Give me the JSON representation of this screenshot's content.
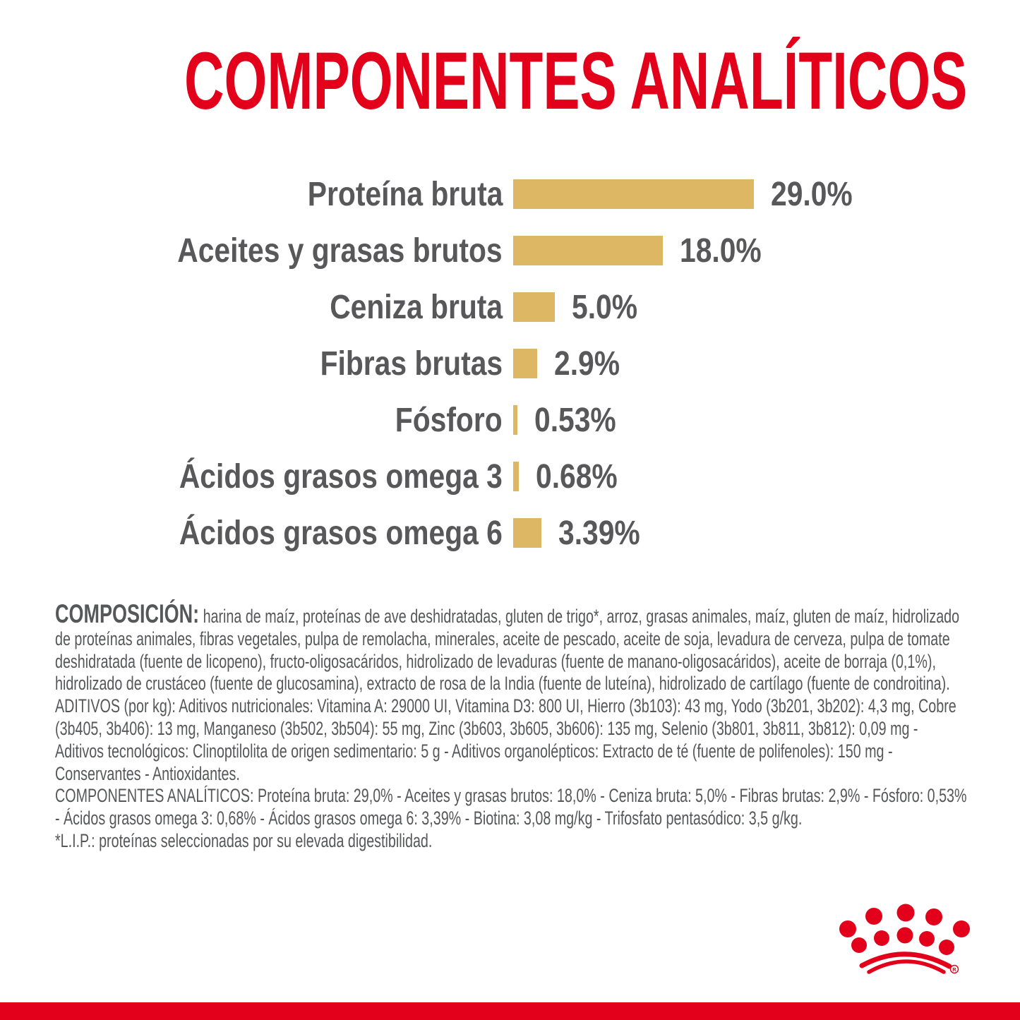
{
  "page": {
    "background": "#FFFFFF",
    "brand_red": "#E2001A",
    "text_gray": "#58585A"
  },
  "title": "COMPONENTES ANALÍTICOS",
  "chart_data": {
    "type": "bar",
    "orientation": "horizontal",
    "unit": "%",
    "categories": [
      "Proteína bruta",
      "Aceites y grasas brutos",
      "Ceniza bruta",
      "Fibras brutas",
      "Fósforo",
      "Ácidos grasos omega 3",
      "Ácidos grasos omega 6"
    ],
    "values": [
      29.0,
      18.0,
      5.0,
      2.9,
      0.53,
      0.68,
      3.39
    ],
    "value_labels": [
      "29.0%",
      "18.0%",
      "5.0%",
      "2.9%",
      "0.53%",
      "0.68%",
      "3.39%"
    ],
    "bar_color": "#DDB763",
    "label_color": "#58585A",
    "xlim": [
      0,
      30
    ],
    "grid": false,
    "legend": "none"
  },
  "legal": {
    "composition_label": "COMPOSICIÓN:",
    "composition_text": "harina de maíz, proteínas de ave deshidratadas, gluten de trigo*, arroz, grasas animales, maíz, gluten de maíz, hidrolizado de proteínas animales, fibras vegetales, pulpa de remolacha, minerales, aceite de pescado, aceite de soja, levadura de cerveza, pulpa de tomate deshidratada (fuente de licopeno), fructo-oligosacáridos, hidrolizado de levaduras (fuente de manano-oligosacáridos), aceite de borraja (0,1%), hidrolizado de crustáceo (fuente de glucosamina), extracto de rosa de la India (fuente de luteína), hidrolizado de cartílago (fuente de condroitina).",
    "additives_text": "ADITIVOS (por kg): Aditivos nutricionales: Vitamina A: 29000 UI, Vitamina D3: 800 UI, Hierro (3b103): 43 mg, Yodo (3b201, 3b202): 4,3 mg, Cobre (3b405, 3b406): 13 mg, Manganeso (3b502, 3b504): 55 mg, Zinc (3b603, 3b605, 3b606): 135 mg, Selenio (3b801, 3b811, 3b812): 0,09 mg - Aditivos tecnológicos: Clinoptilolita de origen sedimentario: 5 g - Aditivos organolépticos: Extracto de té (fuente de polifenoles): 150 mg - Conservantes - Antioxidantes.",
    "analytical_text": "COMPONENTES ANALÍTICOS: Proteína bruta: 29,0% - Aceites y grasas brutos: 18,0% - Ceniza bruta: 5,0% - Fibras brutas: 2,9% - Fósforo: 0,53% - Ácidos grasos omega 3: 0,68% - Ácidos grasos omega 6: 3,39% - Biotina: 3,08 mg/kg - Trifosfato pentasódico: 3,5 g/kg.",
    "lip_note": "*L.I.P.: proteínas seleccionadas por su elevada digestibilidad."
  },
  "brand": {
    "logo": "royal-canin-crown",
    "registered_mark": "®"
  }
}
